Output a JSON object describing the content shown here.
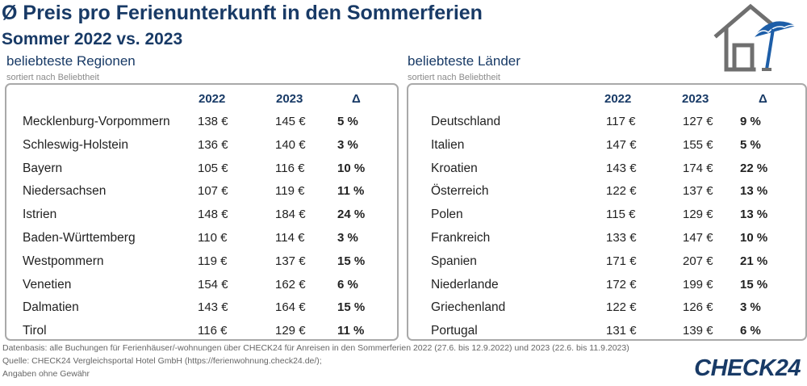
{
  "header": {
    "title": "Ø Preis pro Ferienunterkunft in den Sommerferien",
    "subtitle": "Sommer 2022 vs. 2023"
  },
  "regions": {
    "heading": "beliebteste Regionen",
    "note": "sortiert nach Beliebtheit",
    "columns": [
      "2022",
      "2023",
      "Δ"
    ],
    "rows": [
      {
        "name": "Mecklenburg-Vorpommern",
        "p2022": "138 €",
        "p2023": "145 €",
        "delta": "5 %"
      },
      {
        "name": "Schleswig-Holstein",
        "p2022": "136 €",
        "p2023": "140 €",
        "delta": "3 %"
      },
      {
        "name": "Bayern",
        "p2022": "105 €",
        "p2023": "116 €",
        "delta": "10 %"
      },
      {
        "name": "Niedersachsen",
        "p2022": "107 €",
        "p2023": "119 €",
        "delta": "11 %"
      },
      {
        "name": "Istrien",
        "p2022": "148 €",
        "p2023": "184 €",
        "delta": "24 %"
      },
      {
        "name": "Baden-Württemberg",
        "p2022": "110 €",
        "p2023": "114 €",
        "delta": "3 %"
      },
      {
        "name": "Westpommern",
        "p2022": "119 €",
        "p2023": "137 €",
        "delta": "15 %"
      },
      {
        "name": "Venetien",
        "p2022": "154 €",
        "p2023": "162 €",
        "delta": "6 %"
      },
      {
        "name": "Dalmatien",
        "p2022": "143 €",
        "p2023": "164 €",
        "delta": "15 %"
      },
      {
        "name": "Tirol",
        "p2022": "116 €",
        "p2023": "129 €",
        "delta": "11 %"
      }
    ]
  },
  "countries": {
    "heading": "beliebteste Länder",
    "note": "sortiert nach Beliebtheit",
    "columns": [
      "2022",
      "2023",
      "Δ"
    ],
    "rows": [
      {
        "name": "Deutschland",
        "p2022": "117 €",
        "p2023": "127 €",
        "delta": "9 %"
      },
      {
        "name": "Italien",
        "p2022": "147 €",
        "p2023": "155 €",
        "delta": "5 %"
      },
      {
        "name": "Kroatien",
        "p2022": "143 €",
        "p2023": "174 €",
        "delta": "22 %"
      },
      {
        "name": "Österreich",
        "p2022": "122 €",
        "p2023": "137 €",
        "delta": "13 %"
      },
      {
        "name": "Polen",
        "p2022": "115 €",
        "p2023": "129 €",
        "delta": "13 %"
      },
      {
        "name": "Frankreich",
        "p2022": "133 €",
        "p2023": "147 €",
        "delta": "10 %"
      },
      {
        "name": "Spanien",
        "p2022": "171 €",
        "p2023": "207 €",
        "delta": "21 %"
      },
      {
        "name": "Niederlande",
        "p2022": "172 €",
        "p2023": "199 €",
        "delta": "15 %"
      },
      {
        "name": "Griechenland",
        "p2022": "122 €",
        "p2023": "126 €",
        "delta": "3 %"
      },
      {
        "name": "Portugal",
        "p2022": "131 €",
        "p2023": "139 €",
        "delta": "6 %"
      }
    ]
  },
  "footer": {
    "line1": "Datenbasis: alle Buchungen für Ferienhäuser/-wohnungen über CHECK24 für Anreisen in den Sommerferien 2022 (27.6. bis 12.9.2022) und 2023 (22.6. bis 11.9.2023)",
    "line2": "Quelle: CHECK24 Vergleichsportal Hotel GmbH (https://ferienwohnung.check24.de/);",
    "line3": "Angaben ohne Gewähr"
  },
  "logo": {
    "text": "CHECK24"
  },
  "icons": {
    "illustration": "house-umbrella-icon"
  },
  "colors": {
    "brand": "#183a66",
    "border": "#a9a9a9",
    "icon_gray": "#6f6f6f",
    "umbrella": "#1d5ea8"
  }
}
